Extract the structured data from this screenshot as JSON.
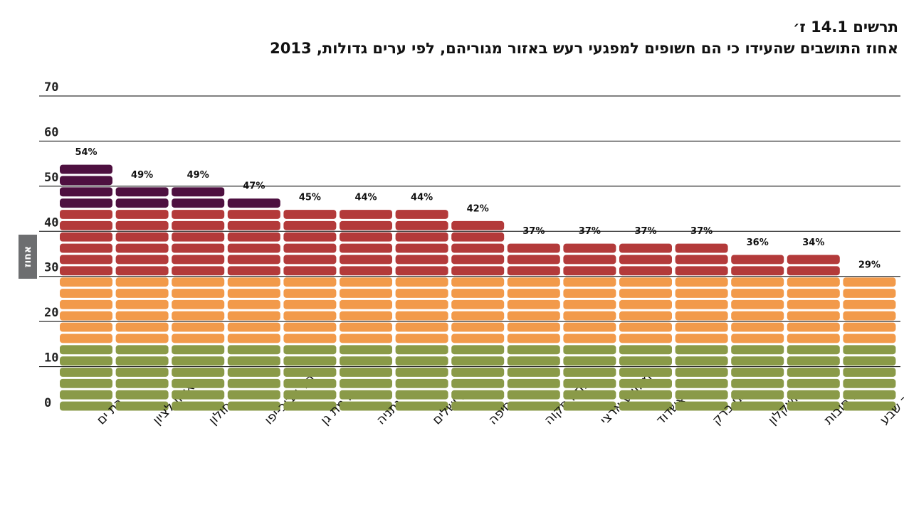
{
  "chart_data": {
    "type": "bar",
    "title": "תרשים 14.1 ז׳",
    "subtitle": "אחוז התושבים שהעידו כי הם חשופים למפגעי רעש באזור מגוריהם, לפי ערים גדולות, 2013",
    "ylabel": "אחוז",
    "ylim": [
      0,
      70
    ],
    "yticks": [
      0,
      10,
      20,
      30,
      40,
      50,
      60,
      70
    ],
    "grid": true,
    "categories": [
      "בת ים",
      "ראשון לציון",
      "חולון",
      "תל אביב-יפו",
      "רמת גן",
      "נתניה",
      "ירושלים",
      "חיפה",
      "פתח תקוה",
      "ממוצע ארצי",
      "אשדוד",
      "בני ברק",
      "אשקלון",
      "רחובות",
      "באר שבע"
    ],
    "values": [
      54,
      49,
      49,
      47,
      45,
      44,
      44,
      42,
      37,
      37,
      37,
      37,
      36,
      34,
      29
    ],
    "data_labels": [
      "54%",
      "49%",
      "49%",
      "47%",
      "45%",
      "44%",
      "44%",
      "42%",
      "37%",
      "37%",
      "37%",
      "37%",
      "36%",
      "34%",
      "29%"
    ],
    "block_colors": [
      "#8a9a48",
      "#f29a4a",
      "#b33a3a",
      "#4e1040"
    ]
  }
}
